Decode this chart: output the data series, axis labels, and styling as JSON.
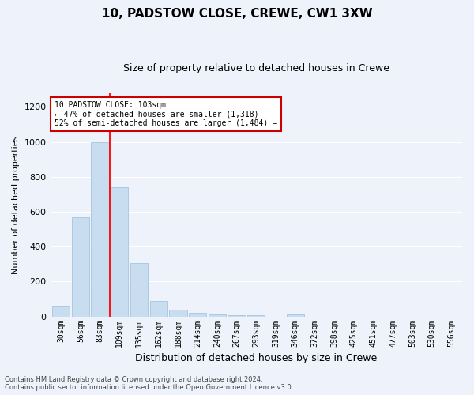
{
  "title": "10, PADSTOW CLOSE, CREWE, CW1 3XW",
  "subtitle": "Size of property relative to detached houses in Crewe",
  "xlabel": "Distribution of detached houses by size in Crewe",
  "ylabel": "Number of detached properties",
  "categories": [
    "30sqm",
    "56sqm",
    "83sqm",
    "109sqm",
    "135sqm",
    "162sqm",
    "188sqm",
    "214sqm",
    "240sqm",
    "267sqm",
    "293sqm",
    "319sqm",
    "346sqm",
    "372sqm",
    "398sqm",
    "425sqm",
    "451sqm",
    "477sqm",
    "503sqm",
    "530sqm",
    "556sqm"
  ],
  "values": [
    62,
    570,
    1000,
    740,
    305,
    90,
    40,
    22,
    14,
    8,
    8,
    0,
    10,
    0,
    0,
    0,
    0,
    0,
    0,
    0,
    0
  ],
  "bar_color": "#c9ddf0",
  "bar_edge_color": "#a8c4e0",
  "red_line_index": 3,
  "annotation_text": "10 PADSTOW CLOSE: 103sqm\n← 47% of detached houses are smaller (1,318)\n52% of semi-detached houses are larger (1,484) →",
  "annotation_box_color": "#ffffff",
  "annotation_box_edge_color": "#cc0000",
  "ylim": [
    0,
    1280
  ],
  "yticks": [
    0,
    200,
    400,
    600,
    800,
    1000,
    1200
  ],
  "background_color": "#eef2fa",
  "grid_color": "#ffffff",
  "footnote": "Contains HM Land Registry data © Crown copyright and database right 2024.\nContains public sector information licensed under the Open Government Licence v3.0.",
  "title_fontsize": 11,
  "subtitle_fontsize": 9,
  "xlabel_fontsize": 9,
  "ylabel_fontsize": 8,
  "tick_fontsize": 7,
  "annot_fontsize": 7
}
